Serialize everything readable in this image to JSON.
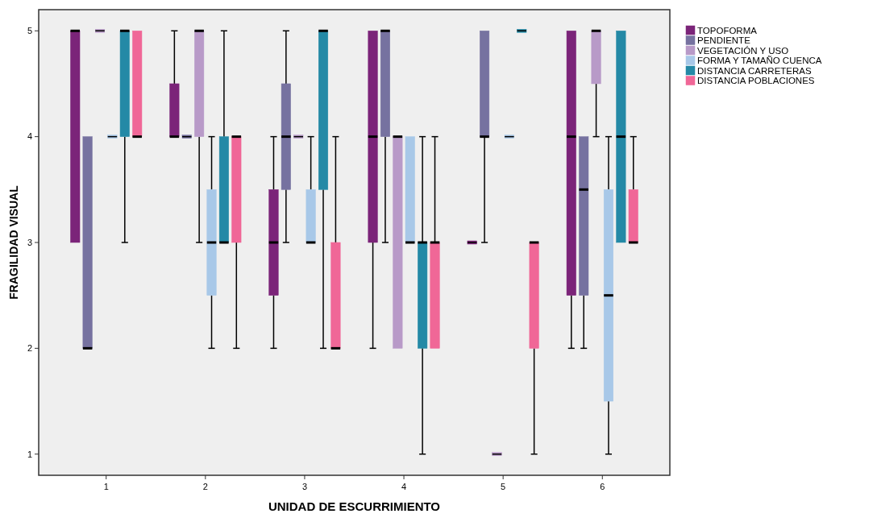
{
  "chart_data": {
    "type": "box",
    "xlabel": "UNIDAD DE ESCURRIMIENTO",
    "ylabel": "FRAGILIDAD VISUAL",
    "categories": [
      "1",
      "2",
      "3",
      "4",
      "5",
      "6"
    ],
    "ylim": [
      0.8,
      5.2
    ],
    "yticks": [
      1,
      2,
      3,
      4,
      5
    ],
    "legend": "top right",
    "grid": false,
    "series": [
      {
        "name": "TOPOFORMA",
        "color": "#7b2479",
        "boxes": [
          {
            "low": 3,
            "q1": 3,
            "median": 5,
            "q3": 5,
            "high": 5
          },
          {
            "low": 4,
            "q1": 4,
            "median": 4,
            "q3": 4.5,
            "high": 5
          },
          {
            "low": 2,
            "q1": 2.5,
            "median": 3,
            "q3": 3.5,
            "high": 4
          },
          {
            "low": 2,
            "q1": 3,
            "median": 4,
            "q3": 5,
            "high": 5
          },
          {
            "low": 3,
            "q1": 3,
            "median": 3,
            "q3": 3,
            "high": 3
          },
          {
            "low": 2,
            "q1": 2.5,
            "median": 4,
            "q3": 5,
            "high": 5
          }
        ]
      },
      {
        "name": "PENDIENTE",
        "color": "#7672a0",
        "boxes": [
          {
            "low": 2,
            "q1": 2,
            "median": 2,
            "q3": 4,
            "high": 4
          },
          {
            "low": 4,
            "q1": 4,
            "median": 4,
            "q3": 4,
            "high": 4
          },
          {
            "low": 3,
            "q1": 3.5,
            "median": 4,
            "q3": 4.5,
            "high": 5
          },
          {
            "low": 3,
            "q1": 4,
            "median": 5,
            "q3": 5,
            "high": 5
          },
          {
            "low": 3,
            "q1": 4,
            "median": 4,
            "q3": 5,
            "high": 5
          },
          {
            "low": 2,
            "q1": 2.5,
            "median": 3.5,
            "q3": 4,
            "high": 4
          }
        ]
      },
      {
        "name": "VEGETACIÓN Y USO",
        "color": "#b89ac8",
        "boxes": [
          {
            "low": 5,
            "q1": 5,
            "median": 5,
            "q3": 5,
            "high": 5
          },
          {
            "low": 3,
            "q1": 4,
            "median": 5,
            "q3": 5,
            "high": 5
          },
          {
            "low": 4,
            "q1": 4,
            "median": 4,
            "q3": 4,
            "high": 4
          },
          {
            "low": 2,
            "q1": 2,
            "median": 4,
            "q3": 4,
            "high": 4
          },
          {
            "low": 1,
            "q1": 1,
            "median": 1,
            "q3": 1,
            "high": 1
          },
          {
            "low": 4,
            "q1": 4.5,
            "median": 5,
            "q3": 5,
            "high": 5
          }
        ]
      },
      {
        "name": "FORMA Y TAMAÑO CUENCA",
        "color": "#a8c8e8",
        "boxes": [
          {
            "low": 4,
            "q1": 4,
            "median": 4,
            "q3": 4,
            "high": 4
          },
          {
            "low": 2,
            "q1": 2.5,
            "median": 3,
            "q3": 3.5,
            "high": 4
          },
          {
            "low": 3,
            "q1": 3,
            "median": 3,
            "q3": 3.5,
            "high": 4
          },
          {
            "low": 3,
            "q1": 3,
            "median": 3,
            "q3": 4,
            "high": 4
          },
          {
            "low": 4,
            "q1": 4,
            "median": 4,
            "q3": 4,
            "high": 4
          },
          {
            "low": 1,
            "q1": 1.5,
            "median": 2.5,
            "q3": 3.5,
            "high": 4
          }
        ]
      },
      {
        "name": "DISTANCIA CARRETERAS",
        "color": "#2489a6",
        "boxes": [
          {
            "low": 3,
            "q1": 4,
            "median": 5,
            "q3": 5,
            "high": 5
          },
          {
            "low": 3,
            "q1": 3,
            "median": 3,
            "q3": 4,
            "high": 5
          },
          {
            "low": 2,
            "q1": 3.5,
            "median": 5,
            "q3": 5,
            "high": 5
          },
          {
            "low": 1,
            "q1": 2,
            "median": 3,
            "q3": 3,
            "high": 4
          },
          {
            "low": 5,
            "q1": 5,
            "median": 5,
            "q3": 5,
            "high": 5
          },
          {
            "low": 3,
            "q1": 3,
            "median": 4,
            "q3": 5,
            "high": 5
          }
        ]
      },
      {
        "name": "DISTANCIA POBLACIONES",
        "color": "#f06797",
        "boxes": [
          {
            "low": 4,
            "q1": 4,
            "median": 4,
            "q3": 5,
            "high": 5
          },
          {
            "low": 2,
            "q1": 3,
            "median": 4,
            "q3": 4,
            "high": 4
          },
          {
            "low": 2,
            "q1": 2,
            "median": 2,
            "q3": 3,
            "high": 4
          },
          {
            "low": 2,
            "q1": 2,
            "median": 3,
            "q3": 3,
            "high": 4
          },
          {
            "low": 1,
            "q1": 2,
            "median": 3,
            "q3": 3,
            "high": 3
          },
          {
            "low": 3,
            "q1": 3,
            "median": 3,
            "q3": 3.5,
            "high": 4
          }
        ]
      }
    ]
  }
}
